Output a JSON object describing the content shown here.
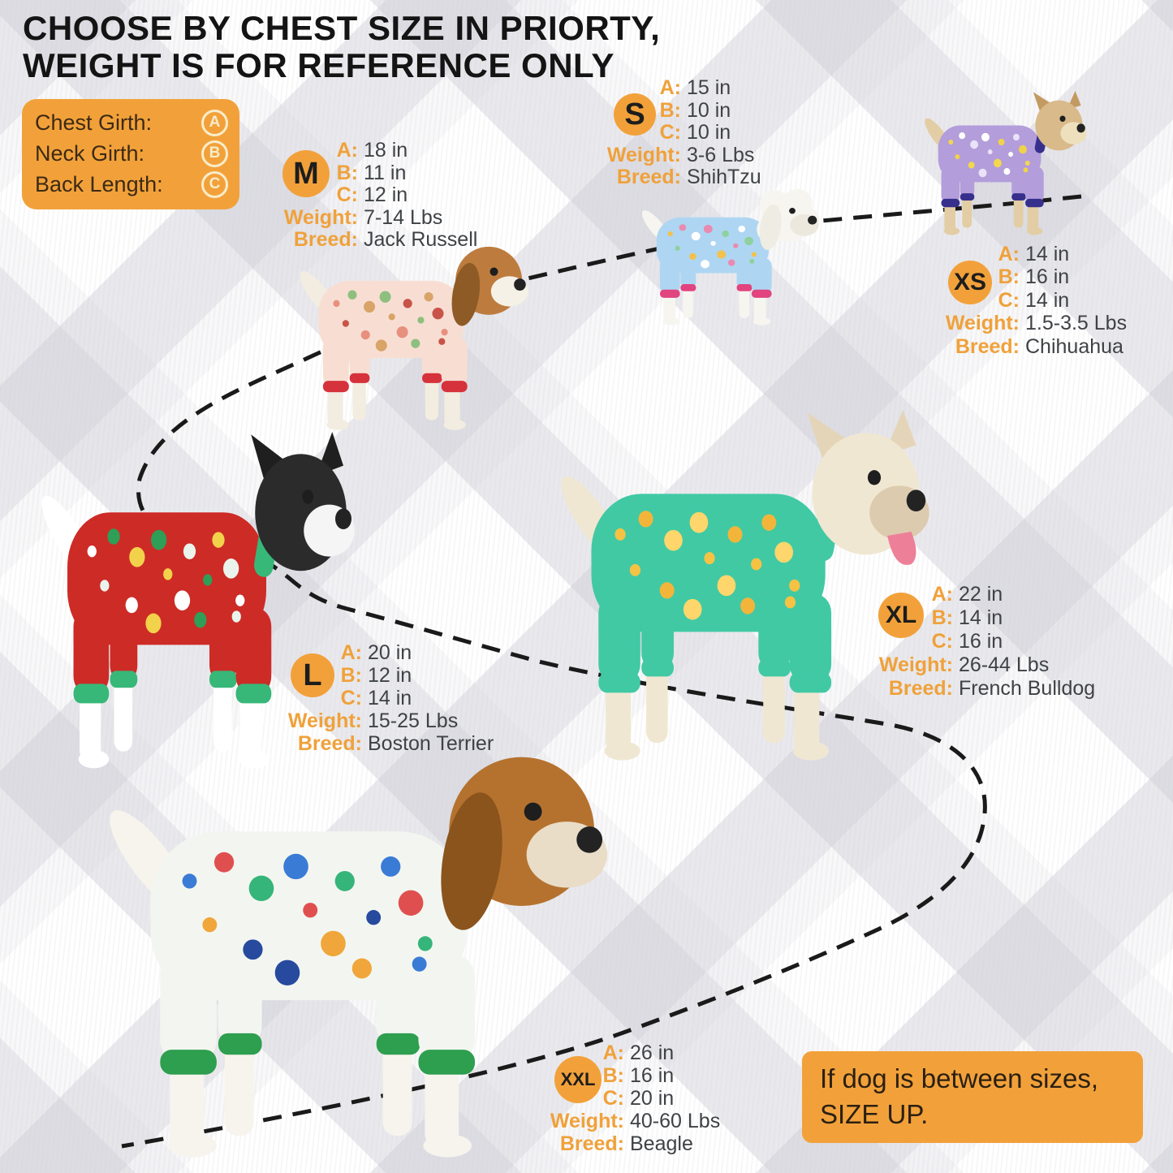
{
  "title": {
    "line1": "CHOOSE BY CHEST SIZE IN PRIORTY,",
    "line2": "WEIGHT IS FOR REFERENCE ONLY"
  },
  "legend": {
    "rows": [
      {
        "label": "Chest Girth:",
        "symbol": "A"
      },
      {
        "label": "Neck Girth:",
        "symbol": "B"
      },
      {
        "label": "Back Length:",
        "symbol": "C"
      }
    ]
  },
  "field_labels": {
    "a": "A:",
    "b": "B:",
    "c": "C:",
    "weight": "Weight:",
    "breed": "Breed:"
  },
  "sizes": [
    {
      "size": "M",
      "chest": "18 in",
      "neck": "11 in",
      "back": "12 in",
      "weight": "7-14 Lbs",
      "breed": "Jack Russell"
    },
    {
      "size": "S",
      "chest": "15 in",
      "neck": "10 in",
      "back": "10 in",
      "weight": "3-6 Lbs",
      "breed": "ShihTzu"
    },
    {
      "size": "XS",
      "chest": "14 in",
      "neck": "16 in",
      "back": "14 in",
      "weight": "1.5-3.5 Lbs",
      "breed": "Chihuahua"
    },
    {
      "size": "L",
      "chest": "20 in",
      "neck": "12 in",
      "back": "14 in",
      "weight": "15-25 Lbs",
      "breed": "Boston Terrier"
    },
    {
      "size": "XL",
      "chest": "22 in",
      "neck": "14 in",
      "back": "16 in",
      "weight": "26-44 Lbs",
      "breed": "French Bulldog"
    },
    {
      "size": "XXL",
      "chest": "26 in",
      "neck": "16 in",
      "back": "20 in",
      "weight": "40-60 Lbs",
      "breed": "Beagle"
    }
  ],
  "note": {
    "line1": "If dog is between sizes,",
    "line2": "SIZE UP."
  },
  "colors": {
    "accent_orange": "#F2A13A",
    "label_orange": "#F0A13A",
    "value_text": "#3F4245",
    "title_text": "#141414",
    "legend_text": "#3C2A14",
    "note_text": "#2B2012",
    "dash": "#1A1A1A"
  },
  "dogs": [
    {
      "size": "M",
      "breed": "jack-russell",
      "pajama": "#F8DED2",
      "trim": "#D6323C",
      "fur": "#F2EDE0",
      "head": "#BD7C3E",
      "ear": "#8E5B26",
      "muzzle": "#F6F1E6",
      "ears": "floppy",
      "fluffy": false,
      "tongue": false,
      "pattern": [
        "#E8907E",
        "#8FBF7F",
        "#D8A468",
        "#C95348"
      ]
    },
    {
      "size": "S",
      "breed": "shihtzu",
      "pajama": "#AED6F2",
      "trim": "#E1447E",
      "fur": "#F7F5F0",
      "head": "#F7F5F0",
      "ear": "#EFECE3",
      "muzzle": "#ECE8DE",
      "ears": "floppy",
      "fluffy": true,
      "tongue": false,
      "pattern": [
        "#F2C14E",
        "#E98BB0",
        "#FFFFFF",
        "#8FD19E"
      ]
    },
    {
      "size": "XS",
      "breed": "chihuahua",
      "pajama": "#B39DDB",
      "trim": "#372F8C",
      "fur": "#E3CDA4",
      "head": "#D9BA8A",
      "ear": "#C39B62",
      "muzzle": "#EFE0BD",
      "ears": "up",
      "fluffy": false,
      "tongue": false,
      "pattern": [
        "#F3D74E",
        "#FFFFFF",
        "#E9E2F8",
        "#F0D24A"
      ]
    },
    {
      "size": "L",
      "breed": "boston-terrier",
      "pajama": "#CD2B26",
      "trim": "#37B878",
      "fur": "#FFFFFF",
      "head": "#2B2B2B",
      "ear": "#1F1F1F",
      "muzzle": "#F5F5F5",
      "ears": "up",
      "fluffy": false,
      "tongue": false,
      "pattern": [
        "#FFFFFF",
        "#2F9E57",
        "#F2D24B",
        "#EAF4EC"
      ]
    },
    {
      "size": "XL",
      "breed": "french-bulldog",
      "pajama": "#41C9A4",
      "trim": "#41C9A4",
      "fur": "#F0E7D2",
      "head": "#F0E7D2",
      "ear": "#E5D5B8",
      "muzzle": "#DCCBAE",
      "ears": "up",
      "fluffy": false,
      "tongue": true,
      "pattern": [
        "#F6C244",
        "#F2B53A",
        "#FFD66B"
      ]
    },
    {
      "size": "XXL",
      "breed": "beagle",
      "pajama": "#F3F6F0",
      "trim": "#2E9E4F",
      "fur": "#F7F4ED",
      "head": "#B5722F",
      "ear": "#8A541C",
      "muzzle": "#E9DDC8",
      "ears": "floppy",
      "fluffy": false,
      "tongue": false,
      "pattern": [
        "#3A7BD5",
        "#E04F4F",
        "#35B57A",
        "#F0A63A",
        "#274A9E"
      ]
    }
  ]
}
